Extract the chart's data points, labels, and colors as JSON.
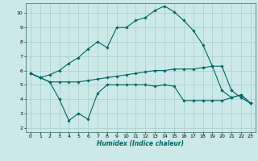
{
  "xlabel": "Humidex (Indice chaleur)",
  "bg_color": "#cce8e8",
  "grid_color": "#aacccc",
  "line_color": "#006666",
  "xlim": [
    -0.5,
    23.5
  ],
  "ylim": [
    1.7,
    10.7
  ],
  "yticks": [
    2,
    3,
    4,
    5,
    6,
    7,
    8,
    9,
    10
  ],
  "xticks": [
    0,
    1,
    2,
    3,
    4,
    5,
    6,
    7,
    8,
    9,
    10,
    11,
    12,
    13,
    14,
    15,
    16,
    17,
    18,
    19,
    20,
    21,
    22,
    23
  ],
  "curve1_x": [
    0,
    1,
    2,
    3,
    4,
    5,
    6,
    7,
    8,
    9,
    10,
    11,
    12,
    13,
    14,
    15,
    16,
    17,
    18,
    19,
    20,
    21,
    22,
    23
  ],
  "curve1_y": [
    5.8,
    5.5,
    5.7,
    6.0,
    6.5,
    6.9,
    7.5,
    8.0,
    7.6,
    9.0,
    9.0,
    9.5,
    9.7,
    10.2,
    10.5,
    10.1,
    9.5,
    8.8,
    7.8,
    6.3,
    4.6,
    4.1,
    4.3,
    3.7
  ],
  "curve2_x": [
    0,
    1,
    2,
    3,
    4,
    5,
    6,
    7,
    8,
    9,
    10,
    11,
    12,
    13,
    14,
    15,
    16,
    17,
    18,
    19,
    20,
    21,
    22,
    23
  ],
  "curve2_y": [
    5.8,
    5.5,
    5.2,
    5.2,
    5.2,
    5.2,
    5.3,
    5.4,
    5.5,
    5.6,
    5.7,
    5.8,
    5.9,
    6.0,
    6.0,
    6.1,
    6.1,
    6.1,
    6.2,
    6.3,
    6.3,
    4.6,
    4.1,
    3.7
  ],
  "curve3_x": [
    0,
    1,
    2,
    3,
    4,
    5,
    6,
    7,
    8,
    9,
    10,
    11,
    12,
    13,
    14,
    15,
    16,
    17,
    18,
    19,
    20,
    21,
    22,
    23
  ],
  "curve3_y": [
    5.8,
    5.5,
    5.2,
    4.0,
    2.5,
    3.0,
    2.6,
    4.4,
    5.0,
    5.0,
    5.0,
    5.0,
    5.0,
    4.9,
    5.0,
    4.9,
    3.9,
    3.9,
    3.9,
    3.9,
    3.9,
    4.1,
    4.3,
    3.7
  ],
  "marker": "D",
  "markersize": 1.8,
  "linewidth": 0.8
}
